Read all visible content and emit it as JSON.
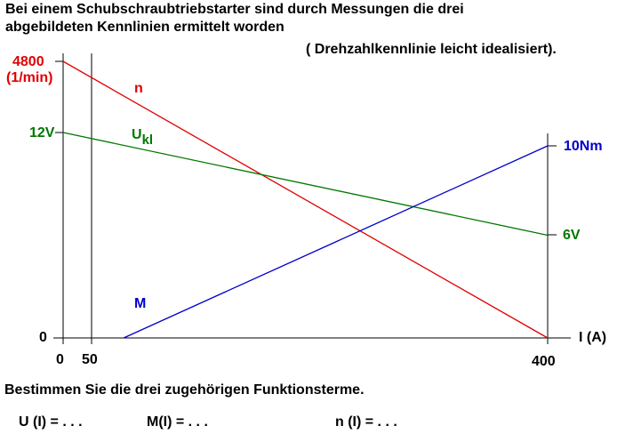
{
  "intro": {
    "line1": "Bei einem Schubschraubtriebstarter sind durch Messungen die drei",
    "line2": "abgebildeten Kennlinien ermittelt worden",
    "note": "( Drehzahlkennlinie  leicht idealisiert)."
  },
  "task": "Bestimmen Sie die drei zugehörigen Funktionsterme.",
  "answers": [
    "U (I) = . . .",
    "M(I) = . . .",
    "n (I) = . . ."
  ],
  "colors": {
    "n": "#e00000",
    "U": "#007800",
    "M": "#0000cc",
    "axis": "#000000"
  },
  "chart_data": {
    "type": "line",
    "x": {
      "label": "I (A)",
      "min": 0,
      "max": 400,
      "ticks": [
        "0",
        "50",
        "400"
      ]
    },
    "axes": {
      "n": {
        "label": "(1/min)",
        "max_label": "4800",
        "max": 4800,
        "zero_label": "0"
      },
      "U": {
        "max_label": "12V",
        "max": 12,
        "min_label": "6V"
      },
      "M": {
        "max_label": "10Nm",
        "max": 10
      }
    },
    "series": [
      {
        "key": "n",
        "name": "n",
        "points": [
          [
            0,
            4800
          ],
          [
            400,
            0
          ]
        ]
      },
      {
        "key": "U",
        "name": "U",
        "subscript": "kl",
        "points": [
          [
            0,
            12
          ],
          [
            400,
            6
          ]
        ]
      },
      {
        "key": "M",
        "name": "M",
        "points": [
          [
            50,
            0
          ],
          [
            400,
            10
          ]
        ]
      }
    ]
  }
}
